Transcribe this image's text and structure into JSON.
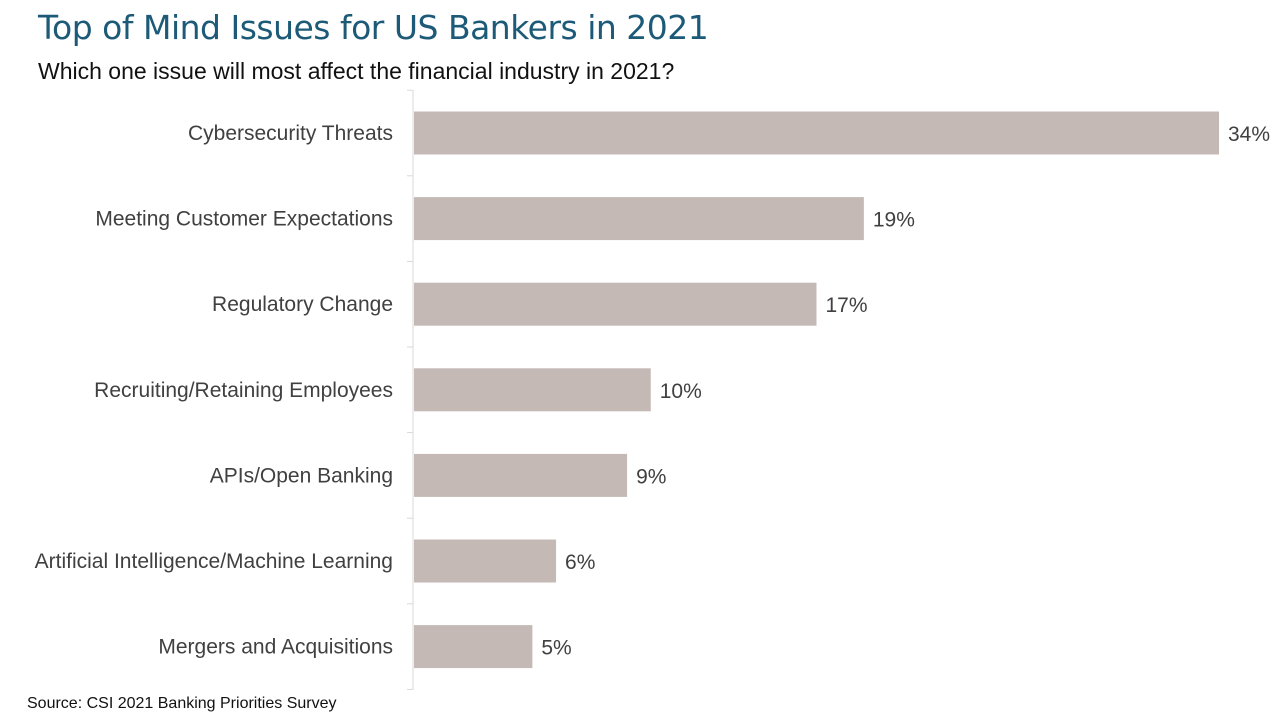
{
  "title": "Top of Mind Issues for US Bankers in 2021",
  "subtitle": "Which one issue will most affect the financial industry in 2021?",
  "source": "Source: CSI 2021 Banking Priorities Survey",
  "colors": {
    "bar": "#c5b9b6",
    "axis": "#d9d9d9",
    "label": "#404040",
    "title": "#1d5a78"
  },
  "chart_data": {
    "type": "bar",
    "orientation": "horizontal",
    "categories": [
      "Cybersecurity Threats",
      "Meeting Customer Expectations",
      "Regulatory Change",
      "Recruiting/Retaining Employees",
      "APIs/Open Banking",
      "Artificial Intelligence/Machine Learning",
      "Mergers and Acquisitions"
    ],
    "values": [
      34,
      19,
      17,
      10,
      9,
      6,
      5
    ],
    "data_labels": [
      "34%",
      "19%",
      "17%",
      "10%",
      "9%",
      "6%",
      "5%"
    ],
    "unit": "%",
    "xlim": [
      0,
      34
    ],
    "grid": false,
    "legend": "none"
  }
}
